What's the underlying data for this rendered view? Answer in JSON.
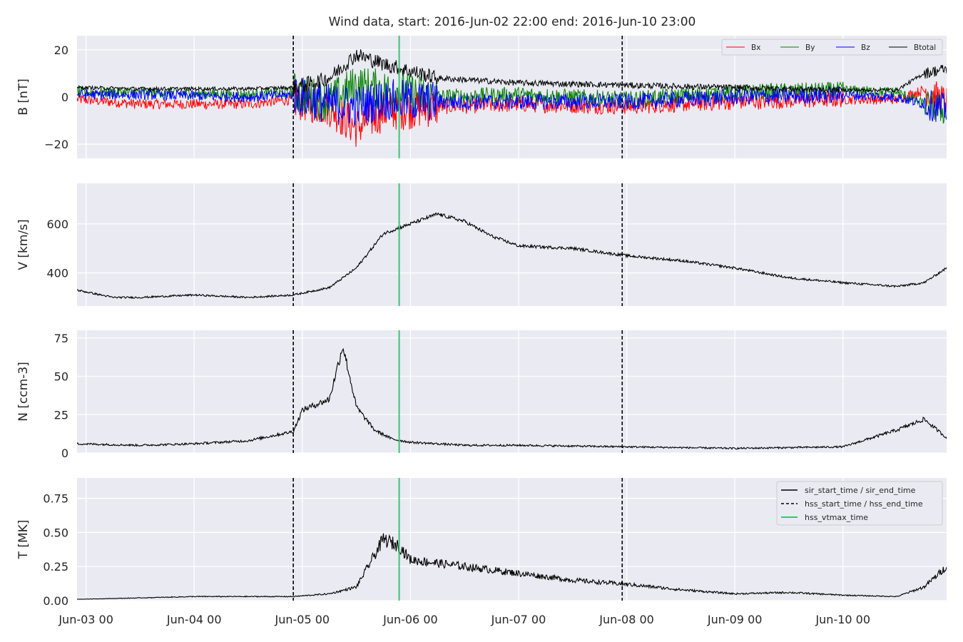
{
  "chart_data": {
    "type": "line",
    "title": "Wind data, start: 2016-Jun-02 22:00  end: 2016-Jun-10 23:00",
    "x_range": [
      "2016-06-02 22:00",
      "2016-06-10 23:00"
    ],
    "x_ticks": [
      "Jun-03 00",
      "Jun-04 00",
      "Jun-05 00",
      "Jun-06 00",
      "Jun-07 00",
      "Jun-08 00",
      "Jun-09 00",
      "Jun-10 00"
    ],
    "grid": true,
    "events": {
      "hss_start_time": "2016-06-04 22:00",
      "hss_end_time": "2016-06-07 23:00",
      "hss_vtmax_time": "2016-06-05 21:30"
    },
    "panels": [
      {
        "ylabel": "B [nT]",
        "ylim": [
          -26,
          26
        ],
        "yticks": [
          20,
          0,
          -20
        ],
        "ytick_labels": [
          "20",
          "0",
          "−20"
        ],
        "legend": "top-right",
        "series": [
          {
            "name": "Bx",
            "color": "#ff0000",
            "x": [
              "2016-06-02 22:00",
              "2016-06-03 12:00",
              "2016-06-04 12:00",
              "2016-06-04 22:00",
              "2016-06-05 06:00",
              "2016-06-05 12:00",
              "2016-06-05 18:00",
              "2016-06-06 06:00",
              "2016-06-07 00:00",
              "2016-06-08 00:00",
              "2016-06-09 00:00",
              "2016-06-10 00:00",
              "2016-06-10 12:00",
              "2016-06-10 18:00",
              "2016-06-10 23:00"
            ],
            "y": [
              -1,
              -3,
              -3,
              -1,
              -4,
              -13,
              -6,
              -4,
              -3,
              -4,
              -2,
              -1,
              -1,
              3,
              -2
            ]
          },
          {
            "name": "By",
            "color": "#008000",
            "x": [
              "2016-06-02 22:00",
              "2016-06-03 12:00",
              "2016-06-04 12:00",
              "2016-06-04 22:00",
              "2016-06-05 06:00",
              "2016-06-05 12:00",
              "2016-06-05 18:00",
              "2016-06-06 06:00",
              "2016-06-07 00:00",
              "2016-06-08 00:00",
              "2016-06-09 00:00",
              "2016-06-10 00:00",
              "2016-06-10 12:00",
              "2016-06-10 18:00",
              "2016-06-10 23:00"
            ],
            "y": [
              2,
              2,
              1,
              2,
              -2,
              5,
              3,
              0,
              1,
              -1,
              2,
              3,
              2,
              -3,
              -6
            ]
          },
          {
            "name": "Bz",
            "color": "#0000ff",
            "x": [
              "2016-06-02 22:00",
              "2016-06-03 12:00",
              "2016-06-04 12:00",
              "2016-06-04 22:00",
              "2016-06-05 06:00",
              "2016-06-05 12:00",
              "2016-06-05 18:00",
              "2016-06-06 06:00",
              "2016-06-07 00:00",
              "2016-06-08 00:00",
              "2016-06-09 00:00",
              "2016-06-10 00:00",
              "2016-06-10 12:00",
              "2016-06-10 18:00",
              "2016-06-10 23:00"
            ],
            "y": [
              1,
              1,
              0,
              1,
              -3,
              -4,
              -1,
              -2,
              -2,
              -2,
              0,
              1,
              0,
              -3,
              -5
            ]
          },
          {
            "name": "Btotal",
            "color": "#000000",
            "x": [
              "2016-06-02 22:00",
              "2016-06-03 12:00",
              "2016-06-04 12:00",
              "2016-06-04 22:00",
              "2016-06-05 06:00",
              "2016-06-05 12:00",
              "2016-06-05 18:00",
              "2016-06-06 06:00",
              "2016-06-07 00:00",
              "2016-06-08 00:00",
              "2016-06-09 00:00",
              "2016-06-10 00:00",
              "2016-06-10 12:00",
              "2016-06-10 18:00",
              "2016-06-10 23:00"
            ],
            "y": [
              4,
              3.5,
              3.5,
              4,
              8,
              18,
              14,
              8,
              6,
              5,
              4,
              3,
              3,
              10,
              12
            ]
          }
        ]
      },
      {
        "ylabel": "V [km/s]",
        "ylim": [
          265,
          765
        ],
        "yticks": [
          600,
          400
        ],
        "ytick_labels": [
          "600",
          "400"
        ],
        "series": [
          {
            "name": "V",
            "color": "#000000",
            "x": [
              "2016-06-02 22:00",
              "2016-06-03 06:00",
              "2016-06-03 12:00",
              "2016-06-04 00:00",
              "2016-06-04 12:00",
              "2016-06-04 22:00",
              "2016-06-05 06:00",
              "2016-06-05 12:00",
              "2016-06-05 18:00",
              "2016-06-06 00:00",
              "2016-06-06 06:00",
              "2016-06-06 12:00",
              "2016-06-06 18:00",
              "2016-06-07 00:00",
              "2016-06-07 12:00",
              "2016-06-08 00:00",
              "2016-06-08 12:00",
              "2016-06-09 00:00",
              "2016-06-09 12:00",
              "2016-06-10 00:00",
              "2016-06-10 12:00",
              "2016-06-10 18:00",
              "2016-06-10 23:00"
            ],
            "y": [
              330,
              300,
              300,
              310,
              300,
              310,
              340,
              420,
              560,
              600,
              640,
              610,
              550,
              510,
              500,
              470,
              450,
              420,
              380,
              360,
              345,
              360,
              420
            ]
          }
        ]
      },
      {
        "ylabel": "N [ccm-3]",
        "ylim": [
          0,
          80
        ],
        "yticks": [
          75,
          50,
          25,
          0
        ],
        "ytick_labels": [
          "75",
          "50",
          "25",
          "0"
        ],
        "series": [
          {
            "name": "N",
            "color": "#000000",
            "x": [
              "2016-06-02 22:00",
              "2016-06-03 12:00",
              "2016-06-04 00:00",
              "2016-06-04 12:00",
              "2016-06-04 22:00",
              "2016-06-05 00:00",
              "2016-06-05 06:00",
              "2016-06-05 09:00",
              "2016-06-05 12:00",
              "2016-06-05 16:00",
              "2016-06-05 20:00",
              "2016-06-06 00:00",
              "2016-06-06 12:00",
              "2016-06-07 00:00",
              "2016-06-08 00:00",
              "2016-06-09 00:00",
              "2016-06-10 00:00",
              "2016-06-10 12:00",
              "2016-06-10 18:00",
              "2016-06-10 23:00"
            ],
            "y": [
              6,
              5,
              6,
              8,
              14,
              28,
              35,
              70,
              30,
              15,
              9,
              7,
              5,
              5,
              4,
              3,
              4,
              15,
              22,
              10
            ]
          }
        ]
      },
      {
        "ylabel": "T [MK]",
        "ylim": [
          0,
          0.9
        ],
        "yticks": [
          0.75,
          0.5,
          0.25,
          0.0
        ],
        "ytick_labels": [
          "0.75",
          "0.50",
          "0.25",
          "0.00"
        ],
        "legend": "top-right",
        "legend_entries": [
          "sir_start_time / sir_end_time",
          "hss_start_time / hss_end_time",
          "hss_vtmax_time"
        ],
        "series": [
          {
            "name": "T",
            "color": "#000000",
            "x": [
              "2016-06-02 22:00",
              "2016-06-03 12:00",
              "2016-06-04 00:00",
              "2016-06-04 12:00",
              "2016-06-04 22:00",
              "2016-06-05 06:00",
              "2016-06-05 12:00",
              "2016-06-05 18:00",
              "2016-06-05 21:30",
              "2016-06-06 00:00",
              "2016-06-06 12:00",
              "2016-06-07 00:00",
              "2016-06-07 12:00",
              "2016-06-08 00:00",
              "2016-06-08 12:00",
              "2016-06-09 00:00",
              "2016-06-09 12:00",
              "2016-06-10 00:00",
              "2016-06-10 12:00",
              "2016-06-10 18:00",
              "2016-06-10 23:00"
            ],
            "y": [
              0.01,
              0.02,
              0.03,
              0.03,
              0.03,
              0.05,
              0.1,
              0.45,
              0.4,
              0.3,
              0.25,
              0.2,
              0.15,
              0.12,
              0.08,
              0.05,
              0.06,
              0.04,
              0.03,
              0.1,
              0.25
            ]
          }
        ]
      }
    ]
  }
}
